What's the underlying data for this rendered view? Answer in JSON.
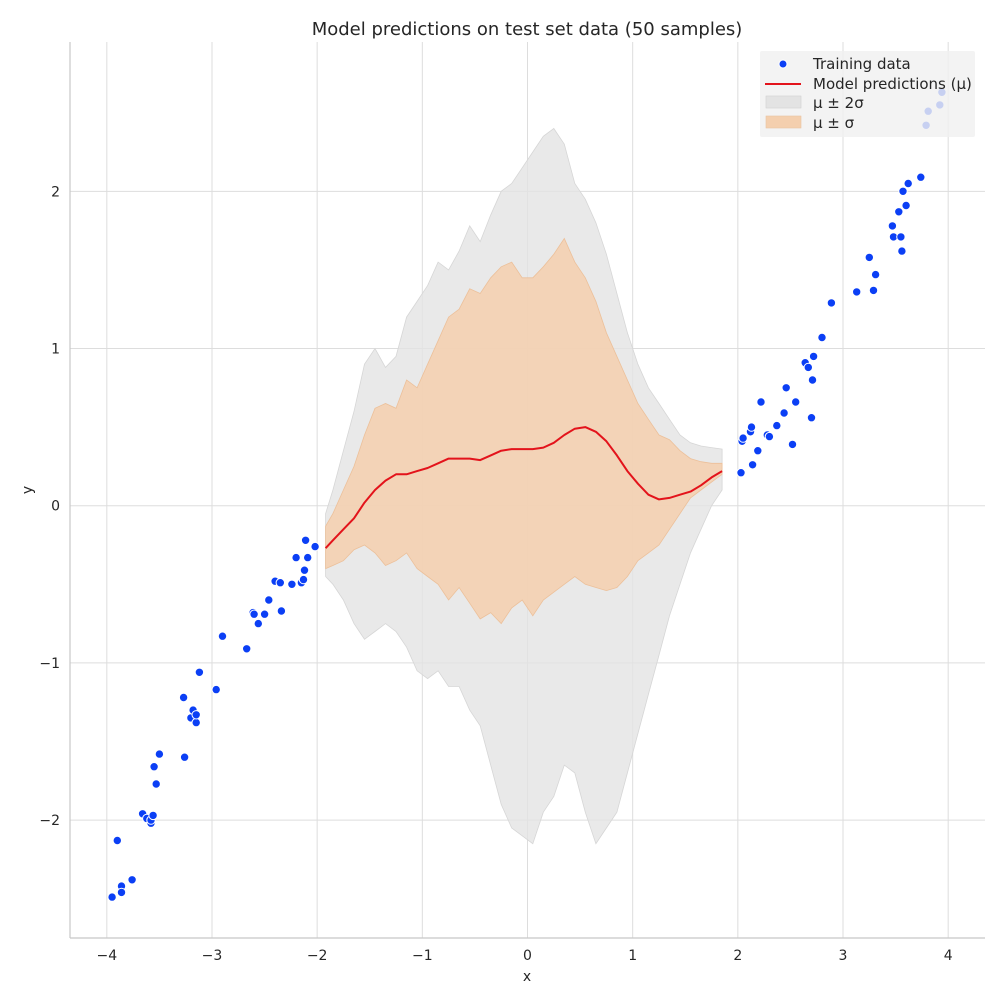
{
  "chart_data": {
    "type": "line",
    "title": "Model predictions on test set data (50 samples)",
    "xlabel": "x",
    "ylabel": "y",
    "xlim": [
      -4.35,
      4.35
    ],
    "ylim": [
      -2.75,
      2.95
    ],
    "xticks": [
      -4,
      -3,
      -2,
      -1,
      0,
      1,
      2,
      3,
      4
    ],
    "xtick_labels": [
      "−4",
      "−3",
      "−2",
      "−1",
      "0",
      "1",
      "2",
      "3",
      "4"
    ],
    "yticks": [
      -2,
      -1,
      0,
      1,
      2
    ],
    "ytick_labels": [
      "−2",
      "−1",
      "0",
      "1",
      "2"
    ],
    "grid": true,
    "legend_position": "top-right",
    "colors": {
      "training": "#0b3ff5",
      "mean": "#e3131b",
      "band2": "#e3e3e3",
      "band1": "#f4cfae"
    },
    "legend": [
      {
        "label": "Training data",
        "kind": "marker"
      },
      {
        "label": "Model predictions (μ)",
        "kind": "line"
      },
      {
        "label": "μ ± 2σ",
        "kind": "patch-grey"
      },
      {
        "label": "μ ± σ",
        "kind": "patch-orange"
      }
    ],
    "training_data": {
      "x": [
        -3.95,
        -3.9,
        -3.86,
        -3.86,
        -3.76,
        -3.66,
        -3.62,
        -3.58,
        -3.58,
        -3.56,
        -3.55,
        -3.53,
        -3.5,
        -3.27,
        -3.26,
        -3.2,
        -3.18,
        -3.15,
        -3.15,
        -3.12,
        -2.96,
        -2.9,
        -2.67,
        -2.61,
        -2.6,
        -2.56,
        -2.5,
        -2.46,
        -2.4,
        -2.35,
        -2.34,
        -2.24,
        -2.2,
        -2.15,
        -2.13,
        -2.12,
        -2.11,
        -2.09,
        -2.02,
        2.03,
        2.04,
        2.05,
        2.12,
        2.13,
        2.14,
        2.19,
        2.22,
        2.28,
        2.3,
        2.37,
        2.44,
        2.46,
        2.52,
        2.55,
        2.64,
        2.67,
        2.7,
        2.71,
        2.72,
        2.8,
        2.89,
        3.13,
        3.25,
        3.29,
        3.31,
        3.47,
        3.48,
        3.53,
        3.55,
        3.56,
        3.57,
        3.6,
        3.62,
        3.74,
        3.79,
        3.81,
        3.92,
        3.94
      ],
      "y": [
        -2.49,
        -2.13,
        -2.42,
        -2.46,
        -2.38,
        -1.96,
        -1.99,
        -2.02,
        -2.0,
        -1.97,
        -1.66,
        -1.77,
        -1.58,
        -1.22,
        -1.6,
        -1.35,
        -1.3,
        -1.38,
        -1.33,
        -1.06,
        -1.17,
        -0.83,
        -0.91,
        -0.68,
        -0.69,
        -0.75,
        -0.69,
        -0.6,
        -0.48,
        -0.49,
        -0.67,
        -0.5,
        -0.33,
        -0.49,
        -0.47,
        -0.41,
        -0.22,
        -0.33,
        -0.26,
        0.21,
        0.41,
        0.43,
        0.47,
        0.5,
        0.26,
        0.35,
        0.66,
        0.45,
        0.44,
        0.51,
        0.59,
        0.75,
        0.39,
        0.66,
        0.91,
        0.88,
        0.56,
        0.8,
        0.95,
        1.07,
        1.29,
        1.36,
        1.58,
        1.37,
        1.47,
        1.78,
        1.71,
        1.87,
        1.71,
        1.62,
        2.0,
        1.91,
        2.05,
        2.09,
        2.42,
        2.51,
        2.55,
        2.63
      ]
    },
    "prediction_x": [
      -1.92,
      -1.85,
      -1.75,
      -1.65,
      -1.55,
      -1.45,
      -1.35,
      -1.25,
      -1.15,
      -1.05,
      -0.95,
      -0.85,
      -0.75,
      -0.65,
      -0.55,
      -0.45,
      -0.35,
      -0.25,
      -0.15,
      -0.05,
      0.05,
      0.15,
      0.25,
      0.35,
      0.45,
      0.55,
      0.65,
      0.75,
      0.85,
      0.95,
      1.05,
      1.15,
      1.25,
      1.35,
      1.45,
      1.55,
      1.65,
      1.75,
      1.85
    ],
    "series": [
      {
        "name": "Model predictions (μ)",
        "values": [
          -0.27,
          -0.22,
          -0.15,
          -0.08,
          0.02,
          0.1,
          0.16,
          0.2,
          0.2,
          0.22,
          0.24,
          0.27,
          0.3,
          0.3,
          0.3,
          0.29,
          0.32,
          0.35,
          0.36,
          0.36,
          0.36,
          0.37,
          0.4,
          0.45,
          0.49,
          0.5,
          0.47,
          0.41,
          0.32,
          0.22,
          0.14,
          0.07,
          0.04,
          0.05,
          0.07,
          0.09,
          0.13,
          0.18,
          0.22
        ]
      }
    ],
    "band_1sigma": {
      "label": "μ ± σ",
      "upper": [
        -0.13,
        -0.05,
        0.1,
        0.25,
        0.45,
        0.62,
        0.65,
        0.62,
        0.8,
        0.75,
        0.9,
        1.05,
        1.2,
        1.25,
        1.38,
        1.35,
        1.45,
        1.52,
        1.55,
        1.45,
        1.45,
        1.52,
        1.6,
        1.7,
        1.55,
        1.45,
        1.3,
        1.1,
        0.95,
        0.8,
        0.65,
        0.55,
        0.45,
        0.42,
        0.35,
        0.3,
        0.28,
        0.27,
        0.27
      ],
      "lower": [
        -0.4,
        -0.38,
        -0.35,
        -0.28,
        -0.25,
        -0.3,
        -0.38,
        -0.35,
        -0.3,
        -0.4,
        -0.45,
        -0.5,
        -0.6,
        -0.52,
        -0.62,
        -0.72,
        -0.68,
        -0.75,
        -0.65,
        -0.6,
        -0.7,
        -0.6,
        -0.55,
        -0.5,
        -0.45,
        -0.5,
        -0.52,
        -0.54,
        -0.52,
        -0.45,
        -0.35,
        -0.3,
        -0.25,
        -0.15,
        -0.05,
        0.05,
        0.1,
        0.15,
        0.2
      ]
    },
    "band_2sigma": {
      "label": "μ ± 2σ",
      "upper": [
        -0.05,
        0.1,
        0.35,
        0.6,
        0.9,
        1.0,
        0.88,
        0.95,
        1.2,
        1.3,
        1.4,
        1.55,
        1.5,
        1.62,
        1.78,
        1.68,
        1.85,
        2.0,
        2.05,
        2.15,
        2.25,
        2.35,
        2.4,
        2.3,
        2.05,
        1.95,
        1.8,
        1.6,
        1.35,
        1.1,
        0.9,
        0.75,
        0.65,
        0.55,
        0.45,
        0.4,
        0.38,
        0.37,
        0.36
      ],
      "lower": [
        -0.45,
        -0.5,
        -0.6,
        -0.75,
        -0.85,
        -0.8,
        -0.75,
        -0.8,
        -0.9,
        -1.05,
        -1.1,
        -1.05,
        -1.15,
        -1.15,
        -1.3,
        -1.4,
        -1.65,
        -1.9,
        -2.05,
        -2.1,
        -2.15,
        -1.95,
        -1.85,
        -1.65,
        -1.7,
        -1.95,
        -2.15,
        -2.05,
        -1.95,
        -1.7,
        -1.45,
        -1.2,
        -0.95,
        -0.7,
        -0.5,
        -0.3,
        -0.15,
        0.0,
        0.1
      ]
    }
  }
}
